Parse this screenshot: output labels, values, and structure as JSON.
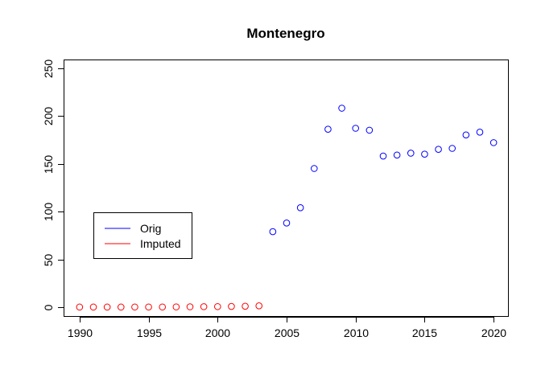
{
  "chart_data": {
    "type": "scatter",
    "title": "Montenegro",
    "xlabel": "",
    "ylabel": "",
    "xlim": [
      1988.9,
      2021.1
    ],
    "ylim": [
      -10,
      258
    ],
    "x_ticks": [
      1990,
      1995,
      2000,
      2005,
      2010,
      2015,
      2020
    ],
    "y_ticks": [
      0,
      50,
      100,
      150,
      200,
      250
    ],
    "grid": false,
    "legend_position": "left",
    "series": [
      {
        "name": "Orig",
        "color": "#0000ff",
        "points": [
          {
            "x": 2004,
            "y": 79
          },
          {
            "x": 2005,
            "y": 88
          },
          {
            "x": 2006,
            "y": 104
          },
          {
            "x": 2007,
            "y": 145
          },
          {
            "x": 2008,
            "y": 186
          },
          {
            "x": 2009,
            "y": 208
          },
          {
            "x": 2010,
            "y": 187
          },
          {
            "x": 2011,
            "y": 185
          },
          {
            "x": 2012,
            "y": 158
          },
          {
            "x": 2013,
            "y": 159
          },
          {
            "x": 2014,
            "y": 161
          },
          {
            "x": 2015,
            "y": 160
          },
          {
            "x": 2016,
            "y": 165
          },
          {
            "x": 2017,
            "y": 166
          },
          {
            "x": 2018,
            "y": 180
          },
          {
            "x": 2019,
            "y": 183
          },
          {
            "x": 2020,
            "y": 172
          }
        ]
      },
      {
        "name": "Imputed",
        "color": "#ff0000",
        "points": [
          {
            "x": 1990,
            "y": 0.2
          },
          {
            "x": 1991,
            "y": 0.2
          },
          {
            "x": 1992,
            "y": 0.2
          },
          {
            "x": 1993,
            "y": 0.2
          },
          {
            "x": 1994,
            "y": 0.3
          },
          {
            "x": 1995,
            "y": 0.3
          },
          {
            "x": 1996,
            "y": 0.3
          },
          {
            "x": 1997,
            "y": 0.4
          },
          {
            "x": 1998,
            "y": 0.5
          },
          {
            "x": 1999,
            "y": 0.6
          },
          {
            "x": 2000,
            "y": 0.7
          },
          {
            "x": 2001,
            "y": 0.9
          },
          {
            "x": 2002,
            "y": 1.1
          },
          {
            "x": 2003,
            "y": 1.5
          }
        ]
      }
    ]
  }
}
